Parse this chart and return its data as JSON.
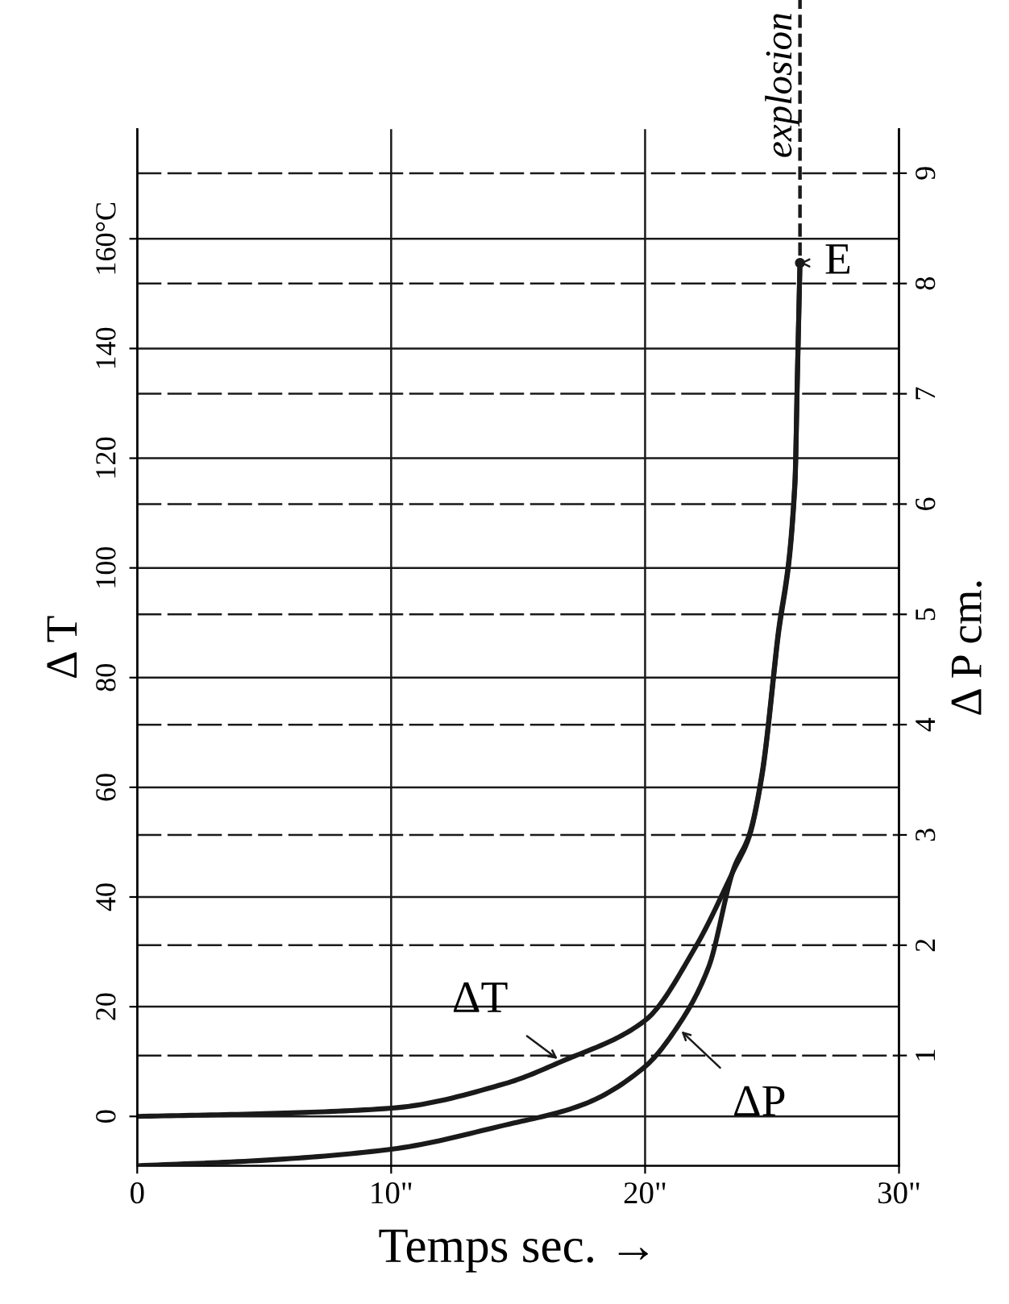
{
  "chart_data": {
    "type": "line",
    "xlabel": "Temps sec. →",
    "ylabel": "Δ T",
    "y2label": "Δ P cm.",
    "xlim": [
      0,
      30
    ],
    "xticks": [
      0,
      {
        "value": 10,
        "label": "10\""
      },
      {
        "value": 20,
        "label": "20\""
      },
      {
        "value": 30,
        "label": "30\""
      }
    ],
    "ylim": [
      -9,
      180
    ],
    "yticks": [
      0,
      20,
      40,
      60,
      80,
      100,
      120,
      140,
      {
        "value": 160,
        "label": "160°C"
      }
    ],
    "y2lim": [
      0,
      9.4
    ],
    "y2ticks": [
      1,
      2,
      3,
      4,
      5,
      6,
      7,
      8,
      9
    ],
    "grid": true,
    "marker": "none",
    "line_style": "solid",
    "series": [
      {
        "color": "#1a1a1a",
        "x": [
          0,
          5,
          10,
          14.5,
          16.7,
          20,
          22,
          23.5,
          24.1,
          24.6,
          25.2,
          25.9,
          26.0,
          26.1
        ],
        "values": [
          0,
          0.5,
          1.5,
          6,
          10,
          17.5,
          31,
          45,
          51,
          62,
          86,
          115,
          135,
          155.6
        ]
      },
      {
        "color": "#1a1a1a",
        "axis": "y2",
        "x": [
          0,
          5,
          10,
          14.5,
          17.5,
          20,
          21.3,
          22.5,
          23.5,
          24.1,
          24.6,
          25.2,
          25.9,
          26.0,
          26.1
        ],
        "values": [
          0,
          0.05,
          0.15,
          0.37,
          0.55,
          0.9,
          1.27,
          1.8,
          2.7,
          3.0,
          3.55,
          4.75,
          6.2,
          7.2,
          8.2
        ]
      }
    ],
    "ref_lines": [
      {
        "axis": "x",
        "value": 26.1,
        "label": "explosion",
        "line_style": "dashed",
        "color": "#1a1a1a"
      }
    ],
    "annotations": [
      {
        "text": "E",
        "x": 26.1,
        "y": 155.6
      },
      {
        "text": "ΔT",
        "x": 16.7,
        "y": 10
      },
      {
        "text": "ΔP",
        "x": 21.3,
        "y": 16.1
      }
    ]
  }
}
